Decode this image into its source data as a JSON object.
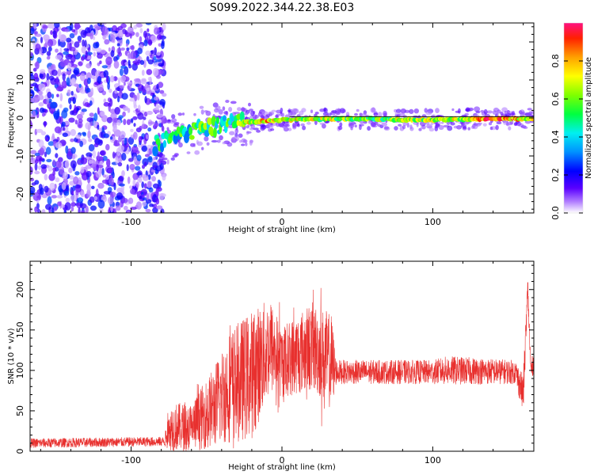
{
  "title": "S099.2022.344.22.38.E03",
  "chart_data": [
    {
      "type": "heatmap",
      "title": "",
      "xlabel": "Height of straight line (km)",
      "ylabel": "Frequency (Hz)",
      "xlim": [
        -167,
        167
      ],
      "ylim": [
        -25,
        25
      ],
      "xticks": [
        -100,
        0,
        100
      ],
      "xtick_labels": [
        "-100",
        "0",
        "100"
      ],
      "yticks": [
        -20,
        -10,
        0,
        10,
        20
      ],
      "ytick_labels": [
        "-20",
        "-10",
        "0",
        "10",
        "20"
      ],
      "colorbar": {
        "label": "Normalized spectral amplitude",
        "range": [
          0,
          1
        ],
        "ticks": [
          0.0,
          0.2,
          0.4,
          0.6,
          0.8
        ],
        "tick_labels": [
          "0.0",
          "0.2",
          "0.4",
          "0.6",
          "0.8"
        ],
        "colormap": "hsv-rainbow (violet to red)"
      },
      "features": {
        "noise_region_x": [
          -167,
          -82
        ],
        "noise_amplitude": 0.25,
        "trace_points": [
          {
            "x": -82,
            "y": -7.0,
            "amp": 0.42
          },
          {
            "x": -70,
            "y": -5.0,
            "amp": 0.45
          },
          {
            "x": -60,
            "y": -3.5,
            "amp": 0.47
          },
          {
            "x": -50,
            "y": -2.8,
            "amp": 0.5
          },
          {
            "x": -40,
            "y": -1.8,
            "amp": 0.5
          },
          {
            "x": -30,
            "y": -1.2,
            "amp": 0.55
          },
          {
            "x": -20,
            "y": -1.0,
            "amp": 0.7
          },
          {
            "x": -10,
            "y": -0.8,
            "amp": 0.75
          },
          {
            "x": 0,
            "y": -0.5,
            "amp": 0.7
          },
          {
            "x": 20,
            "y": -0.3,
            "amp": 0.65
          },
          {
            "x": 40,
            "y": -0.2,
            "amp": 0.6
          },
          {
            "x": 60,
            "y": -0.2,
            "amp": 0.6
          },
          {
            "x": 80,
            "y": -0.5,
            "amp": 0.65
          },
          {
            "x": 100,
            "y": -0.5,
            "amp": 0.6
          },
          {
            "x": 120,
            "y": -0.3,
            "amp": 0.65
          },
          {
            "x": 140,
            "y": -0.2,
            "amp": 0.95
          },
          {
            "x": 167,
            "y": -0.2,
            "amp": 0.65
          }
        ]
      },
      "grid": false
    },
    {
      "type": "line",
      "title": "",
      "xlabel": "Height of straight line (km)",
      "ylabel": "SNR (10 * v/v)",
      "xlim": [
        -167,
        167
      ],
      "ylim": [
        0,
        235
      ],
      "xticks": [
        -100,
        0,
        100
      ],
      "xtick_labels": [
        "-100",
        "0",
        "100"
      ],
      "yticks": [
        0,
        50,
        100,
        150,
        200
      ],
      "ytick_labels": [
        "0",
        "50",
        "100",
        "150",
        "200"
      ],
      "series_color": "#e8302e",
      "grid": false,
      "envelope": [
        {
          "x": -167,
          "mean": 10,
          "spread": 6
        },
        {
          "x": -78,
          "mean": 12,
          "spread": 6
        },
        {
          "x": -74,
          "mean": 30,
          "spread": 30
        },
        {
          "x": -60,
          "mean": 30,
          "spread": 30
        },
        {
          "x": -45,
          "mean": 55,
          "spread": 50
        },
        {
          "x": -35,
          "mean": 80,
          "spread": 70
        },
        {
          "x": -20,
          "mean": 95,
          "spread": 80
        },
        {
          "x": -8,
          "mean": 130,
          "spread": 60
        },
        {
          "x": 0,
          "mean": 110,
          "spread": 45
        },
        {
          "x": 10,
          "mean": 120,
          "spread": 50
        },
        {
          "x": 20,
          "mean": 130,
          "spread": 55
        },
        {
          "x": 33,
          "mean": 110,
          "spread": 60
        },
        {
          "x": 36,
          "mean": 98,
          "spread": 15
        },
        {
          "x": 100,
          "mean": 98,
          "spread": 15
        },
        {
          "x": 110,
          "mean": 100,
          "spread": 18
        },
        {
          "x": 155,
          "mean": 98,
          "spread": 15
        },
        {
          "x": 160,
          "mean": 70,
          "spread": 25
        },
        {
          "x": 163,
          "mean": 200,
          "spread": 20
        },
        {
          "x": 165,
          "mean": 100,
          "spread": 15
        },
        {
          "x": 167,
          "mean": 110,
          "spread": 12
        }
      ]
    }
  ]
}
